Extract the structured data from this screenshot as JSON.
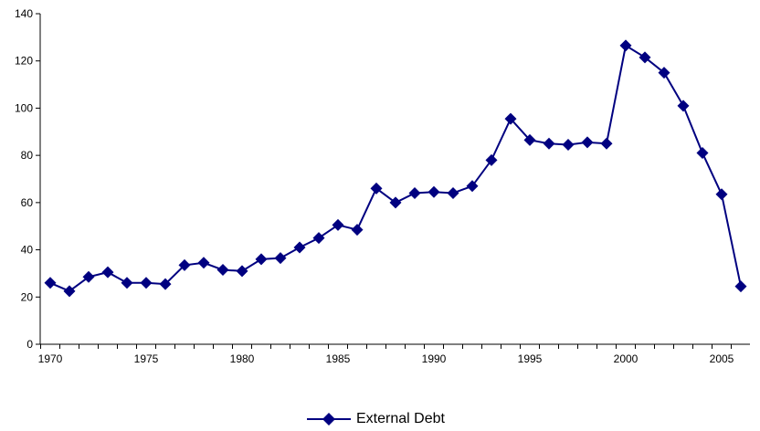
{
  "chart_data": {
    "type": "line",
    "title": "",
    "xlabel": "",
    "ylabel": "",
    "ylim": [
      0,
      140
    ],
    "xlim": [
      1970,
      2006
    ],
    "y_ticks": [
      "0",
      "20",
      "40",
      "60",
      "80",
      "100",
      "120",
      "140"
    ],
    "x_ticks": [
      "1970",
      "1975",
      "1980",
      "1985",
      "1990",
      "1995",
      "2000",
      "2005"
    ],
    "grid": false,
    "legend_position": "bottom",
    "series": [
      {
        "name": "External Debt",
        "color": "#000080",
        "marker": "diamond",
        "x": [
          1970,
          1971,
          1972,
          1973,
          1974,
          1975,
          1976,
          1977,
          1978,
          1979,
          1980,
          1981,
          1982,
          1983,
          1984,
          1985,
          1986,
          1987,
          1988,
          1989,
          1990,
          1991,
          1992,
          1993,
          1994,
          1995,
          1996,
          1997,
          1998,
          1999,
          2000,
          2001,
          2002,
          2003,
          2004,
          2005,
          2006
        ],
        "values": [
          26,
          22.5,
          28.5,
          30.5,
          26,
          26,
          25.5,
          33.5,
          34.5,
          31.5,
          31,
          36,
          36.5,
          41,
          45,
          50.5,
          48.5,
          66,
          60,
          64,
          64.5,
          64,
          67,
          78,
          95.5,
          86.5,
          85,
          84.5,
          85.5,
          85,
          126.5,
          121.5,
          115,
          101,
          81,
          63.5,
          24.5
        ]
      }
    ]
  }
}
